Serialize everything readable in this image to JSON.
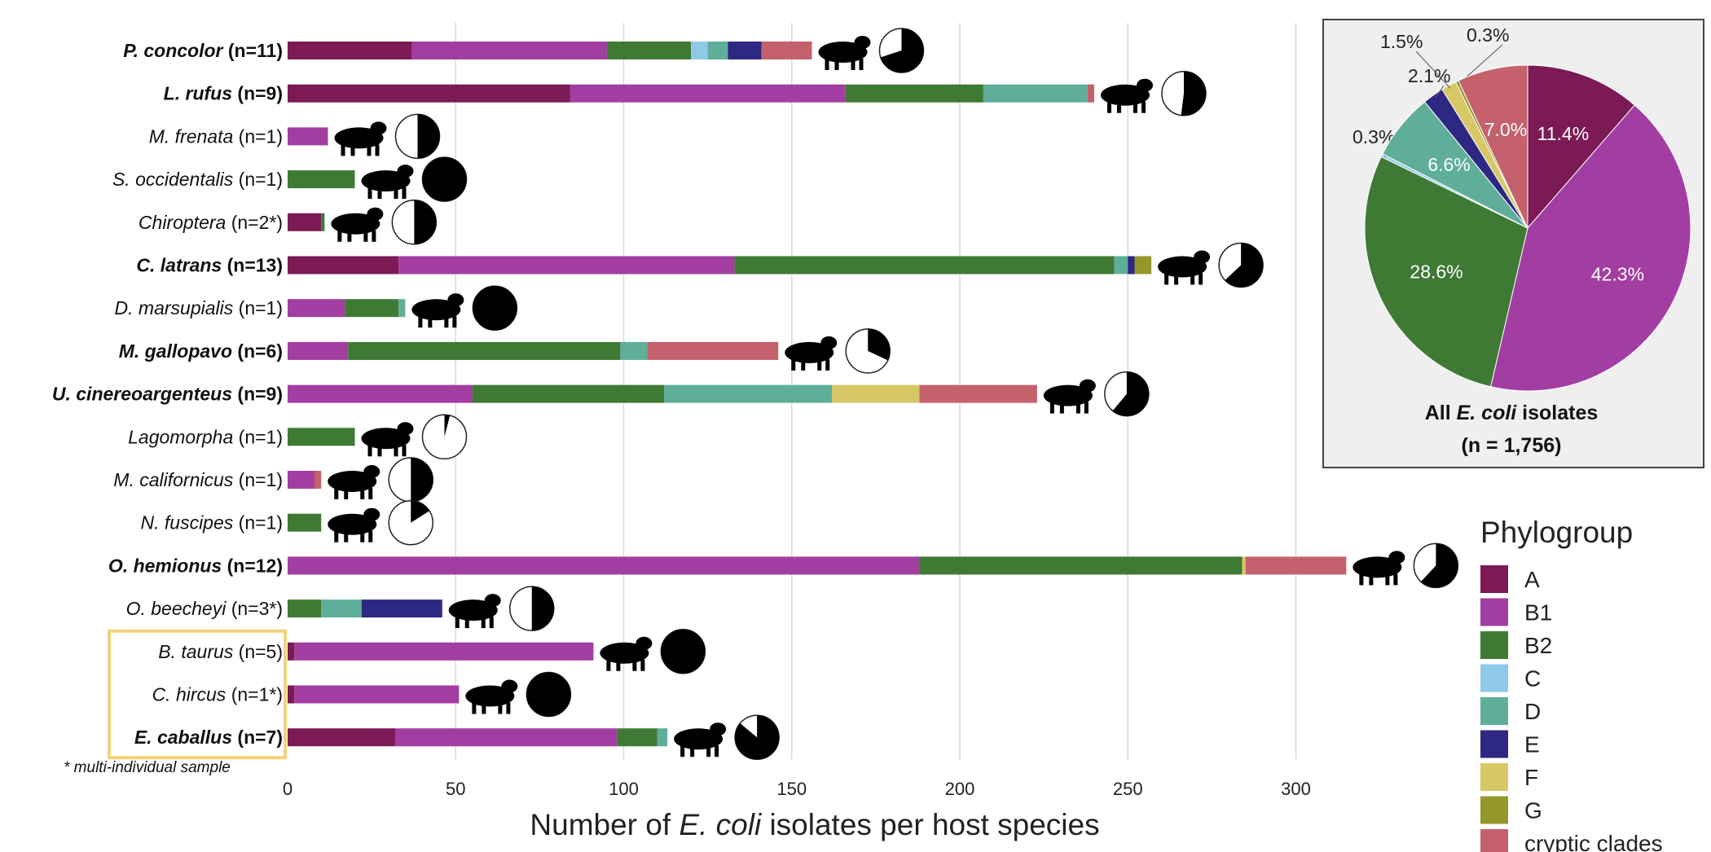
{
  "chart_data": [
    {
      "type": "bar",
      "stacked": true,
      "orientation": "horizontal",
      "xlabel_parts": [
        "Number of ",
        "E. coli",
        " isolates per host species"
      ],
      "xlim": [
        0,
        320
      ],
      "xticks": [
        0,
        50,
        100,
        150,
        200,
        250,
        300
      ],
      "grid": true,
      "footnote": "* multi-individual sample",
      "rows": [
        {
          "name": "P. concolor",
          "n": "(n=11)",
          "bold": true,
          "values": {
            "A": 37,
            "B1": 58,
            "B2": 25,
            "C": 5,
            "D": 6,
            "E": 10,
            "cryptic clades": 15
          },
          "pie_dark": 0.7
        },
        {
          "name": "L. rufus",
          "n": "(n=9)",
          "bold": true,
          "values": {
            "A": 84,
            "B1": 82,
            "B2": 41,
            "D": 31,
            "cryptic clades": 2
          },
          "pie_dark": 0.52
        },
        {
          "name": "M. frenata",
          "n": "(n=1)",
          "bold": false,
          "values": {
            "B1": 12
          },
          "pie_dark": 0.5
        },
        {
          "name": "S. occidentalis",
          "n": "(n=1)",
          "bold": false,
          "values": {
            "B2": 20
          },
          "pie_dark": 1.0
        },
        {
          "name": "Chiroptera",
          "n": "(n=2*)",
          "bold": false,
          "values": {
            "A": 10,
            "B2": 1
          },
          "pie_dark": 0.5
        },
        {
          "name": "C. latrans",
          "n": "(n=13)",
          "bold": true,
          "values": {
            "A": 33,
            "B1": 100,
            "B2": 113,
            "D": 4,
            "E": 2,
            "G": 5
          },
          "pie_dark": 0.63
        },
        {
          "name": "D. marsupialis",
          "n": "(n=1)",
          "bold": false,
          "values": {
            "B1": 17,
            "B2": 16,
            "D": 2
          },
          "pie_dark": 1.0
        },
        {
          "name": "M. gallopavo",
          "n": "(n=6)",
          "bold": true,
          "values": {
            "B1": 18,
            "B2": 81,
            "D": 8,
            "cryptic clades": 39
          },
          "pie_dark": 0.32
        },
        {
          "name": "U. cinereoargenteus",
          "n": "(n=9)",
          "bold": true,
          "values": {
            "B1": 55,
            "B2": 57,
            "D": 50,
            "F": 26,
            "cryptic clades": 35
          },
          "pie_dark": 0.61
        },
        {
          "name": "Lagomorpha",
          "n": "(n=1)",
          "bold": false,
          "values": {
            "B2": 20
          },
          "pie_dark": 0.04
        },
        {
          "name": "M. californicus",
          "n": "(n=1)",
          "bold": false,
          "values": {
            "B1": 8,
            "cryptic clades": 2
          },
          "pie_dark": 0.5
        },
        {
          "name": "N. fuscipes",
          "n": "(n=1)",
          "bold": false,
          "values": {
            "B2": 10
          },
          "pie_dark": 0.16
        },
        {
          "name": "O. hemionus",
          "n": "(n=12)",
          "bold": true,
          "values": {
            "B1": 188,
            "B2": 96,
            "F": 1,
            "cryptic clades": 30
          },
          "pie_dark": 0.62
        },
        {
          "name": "O. beecheyi",
          "n": "(n=3*)",
          "bold": false,
          "values": {
            "B2": 10,
            "D": 12,
            "E": 24
          },
          "pie_dark": 0.5
        },
        {
          "name": "B. taurus",
          "n": "(n=5)",
          "bold": false,
          "values": {
            "A": 2,
            "B1": 89
          },
          "pie_dark": 1.0
        },
        {
          "name": "C. hircus",
          "n": "(n=1*)",
          "bold": false,
          "values": {
            "A": 2,
            "B1": 49
          },
          "pie_dark": 1.0
        },
        {
          "name": "E. caballus",
          "n": "(n=7)",
          "bold": true,
          "values": {
            "A": 32,
            "B1": 66,
            "B2": 12,
            "D": 3
          },
          "pie_dark": 0.86
        }
      ],
      "highlight_box_rows": [
        "B. taurus",
        "C. hircus",
        "E. caballus"
      ],
      "legend": {
        "title": "Phylogroup",
        "placement": "right",
        "items": [
          "A",
          "B1",
          "B2",
          "C",
          "D",
          "E",
          "F",
          "G",
          "cryptic clades"
        ]
      }
    },
    {
      "type": "pie",
      "caption_parts": [
        "All ",
        "E. coli",
        " isolates"
      ],
      "caption_n": "(n = 1,756)",
      "slices": [
        {
          "label": "A",
          "value": 11.4,
          "text": "11.4%"
        },
        {
          "label": "B1",
          "value": 42.3,
          "text": "42.3%"
        },
        {
          "label": "B2",
          "value": 28.6,
          "text": "28.6%"
        },
        {
          "label": "C",
          "value": 0.3,
          "text": "0.3%"
        },
        {
          "label": "D",
          "value": 6.6,
          "text": "6.6%"
        },
        {
          "label": "E",
          "value": 2.1,
          "text": "2.1%"
        },
        {
          "label": "F",
          "value": 1.5,
          "text": "1.5%"
        },
        {
          "label": "G",
          "value": 0.3,
          "text": "0.3%"
        },
        {
          "label": "cryptic clades",
          "value": 7.0,
          "text": "7.0%"
        }
      ]
    }
  ],
  "colors": {
    "A": "#7b1a55",
    "B1": "#a23ea1",
    "B2": "#3f7a34",
    "C": "#8ec9ea",
    "D": "#5fae99",
    "E": "#2e2882",
    "F": "#d8c765",
    "G": "#959728",
    "cryptic clades": "#c4616d",
    "highlight": "#f2d27a",
    "grid": "#d9d9d9",
    "inset_bg": "#efefef"
  },
  "icons": [
    "cougar-icon",
    "bobcat-icon",
    "weasel-icon",
    "lizard-icon",
    "bat-icon",
    "coyote-icon",
    "opossum-icon",
    "turkey-icon",
    "fox-icon",
    "rabbit-icon",
    "vole-icon",
    "woodrat-icon",
    "deer-icon",
    "squirrel-icon",
    "cow-icon",
    "goat-icon",
    "horse-icon"
  ]
}
